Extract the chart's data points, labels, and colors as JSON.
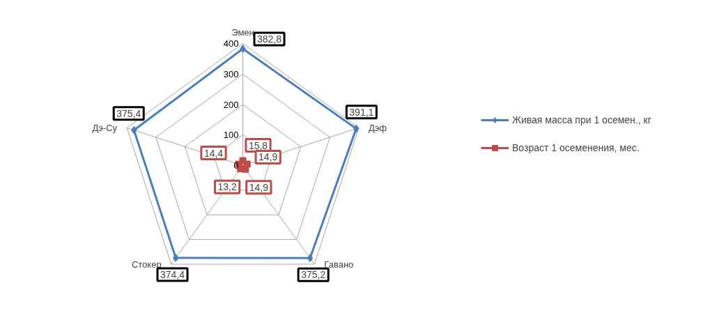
{
  "chart_data": {
    "type": "radar",
    "categories": [
      "Эмен",
      "Дэф",
      "Гавано",
      "Стокер",
      "Дэ-Су"
    ],
    "series": [
      {
        "name": "Живая масса при 1 осемен., кг",
        "color": "#4a7ebb",
        "marker": "diamond",
        "values": [
          382.8,
          391.1,
          375.2,
          374.4,
          375.4
        ],
        "value_labels": [
          "382,8",
          "391,1",
          "375,2",
          "374,4",
          "375,4"
        ]
      },
      {
        "name": "Возраст 1 осеменения, мес.",
        "color": "#be4b48",
        "marker": "square",
        "values": [
          15.8,
          14.9,
          14.9,
          13.2,
          14.4
        ],
        "value_labels": [
          "15,8",
          "14,9",
          "14,9",
          "13,2",
          "14,4"
        ]
      }
    ],
    "ylim": [
      0,
      400
    ],
    "yticks": [
      0,
      100,
      200,
      300,
      400
    ],
    "grid": true,
    "legend": "right"
  }
}
